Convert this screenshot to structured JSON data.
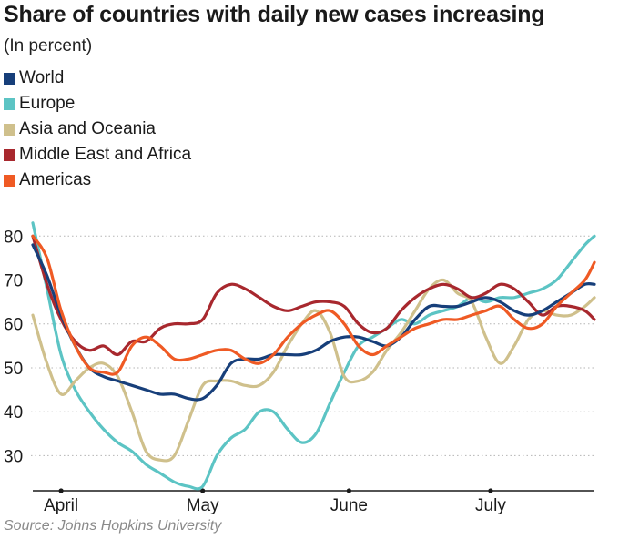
{
  "chart_data": {
    "type": "line",
    "title": "Share of countries with daily new cases increasing",
    "subtitle": "(In percent)",
    "source": "Source: Johns Hopkins University",
    "ylim": [
      22,
      84
    ],
    "yticks": [
      30,
      40,
      50,
      60,
      70,
      80
    ],
    "xlim": [
      0,
      119
    ],
    "xticks": [
      {
        "day": 6,
        "label": "April"
      },
      {
        "day": 36,
        "label": "May"
      },
      {
        "day": 67,
        "label": "June"
      },
      {
        "day": 97,
        "label": "July"
      }
    ],
    "x": [
      0,
      3,
      6,
      9,
      12,
      15,
      18,
      21,
      24,
      27,
      30,
      33,
      36,
      39,
      42,
      45,
      48,
      51,
      54,
      57,
      60,
      63,
      66,
      69,
      72,
      75,
      78,
      81,
      84,
      87,
      90,
      93,
      96,
      99,
      102,
      105,
      108,
      111,
      114,
      117,
      119
    ],
    "grid": true,
    "legend_position": "top-left",
    "series": [
      {
        "name": "World",
        "color": "#173f7a",
        "values": [
          78,
          71,
          62,
          55,
          50,
          48,
          47,
          46,
          45,
          44,
          44,
          43,
          43,
          46,
          51,
          52,
          52,
          53,
          53,
          53,
          54,
          56,
          57,
          57,
          56,
          55,
          57,
          61,
          64,
          64,
          64,
          65,
          66,
          65,
          63,
          62,
          63,
          65,
          67,
          69,
          69
        ]
      },
      {
        "name": "Europe",
        "color": "#5cc4c4",
        "values": [
          83,
          68,
          53,
          45,
          40,
          36,
          33,
          31,
          28,
          26,
          24,
          23,
          23,
          30,
          34,
          36,
          40,
          40,
          36,
          33,
          35,
          42,
          49,
          55,
          57,
          59,
          61,
          60,
          62,
          63,
          64,
          66,
          65,
          66,
          66,
          67,
          68,
          70,
          74,
          78,
          80
        ]
      },
      {
        "name": "Asia and Oceania",
        "color": "#cfc08c",
        "values": [
          62,
          51,
          44,
          47,
          50,
          51,
          48,
          40,
          31,
          29,
          30,
          38,
          46,
          47,
          47,
          46,
          46,
          49,
          55,
          60,
          63,
          58,
          48,
          47,
          49,
          54,
          58,
          63,
          68,
          70,
          67,
          65,
          57,
          51,
          55,
          61,
          63,
          62,
          62,
          64,
          66
        ]
      },
      {
        "name": "Middle East and Africa",
        "color": "#a8282e",
        "values": [
          80,
          69,
          61,
          56,
          54,
          55,
          53,
          56,
          56,
          59,
          60,
          60,
          61,
          67,
          69,
          68,
          66,
          64,
          63,
          64,
          65,
          65,
          64,
          60,
          58,
          59,
          63,
          66,
          68,
          69,
          68,
          66,
          67,
          69,
          68,
          65,
          62,
          64,
          64,
          63,
          61
        ]
      },
      {
        "name": "Americas",
        "color": "#ef5a24",
        "values": [
          80,
          75,
          63,
          55,
          50,
          49,
          49,
          55,
          57,
          55,
          52,
          52,
          53,
          54,
          54,
          52,
          51,
          53,
          57,
          60,
          62,
          63,
          60,
          55,
          53,
          55,
          57,
          59,
          60,
          61,
          61,
          62,
          63,
          64,
          61,
          59,
          60,
          64,
          67,
          70,
          74
        ]
      }
    ]
  }
}
